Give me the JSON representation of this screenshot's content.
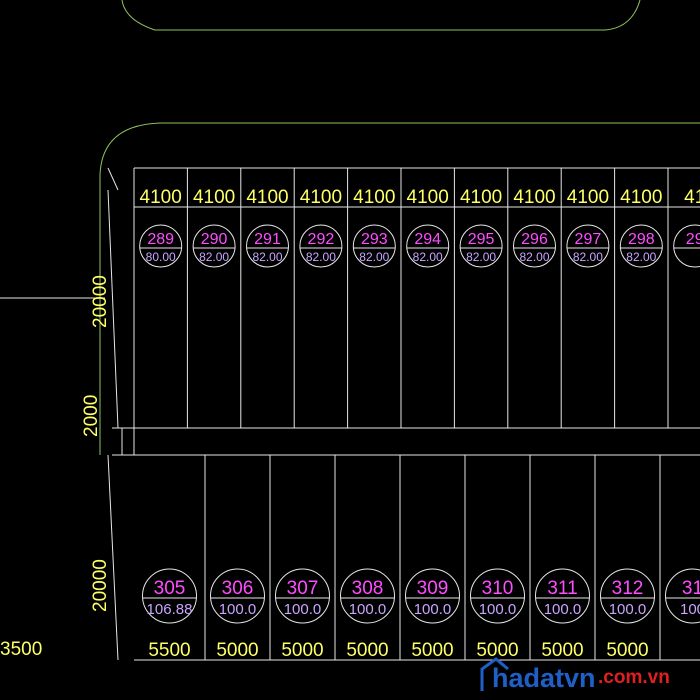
{
  "colors": {
    "background": "#000000",
    "linework": "#e6e6e6",
    "road_curve": "#8ec35a",
    "dimension_text": "#ffff66",
    "lot_number": "#ff4dff",
    "lot_area": "#c9a5ff",
    "watermark_blue": "#1e60c8",
    "watermark_red": "#e02020"
  },
  "dimensions": {
    "upper_block_depth": "20000",
    "road_width": "2000",
    "lower_block_depth": "20000",
    "left_offset": "3500"
  },
  "upper_row": [
    {
      "width": "4100",
      "lot": "289",
      "area": "80.00"
    },
    {
      "width": "4100",
      "lot": "290",
      "area": "82.00"
    },
    {
      "width": "4100",
      "lot": "291",
      "area": "82.00"
    },
    {
      "width": "4100",
      "lot": "292",
      "area": "82.00"
    },
    {
      "width": "4100",
      "lot": "293",
      "area": "82.00"
    },
    {
      "width": "4100",
      "lot": "294",
      "area": "82.00"
    },
    {
      "width": "4100",
      "lot": "295",
      "area": "82.00"
    },
    {
      "width": "4100",
      "lot": "296",
      "area": "82.00"
    },
    {
      "width": "4100",
      "lot": "297",
      "area": "82.00"
    },
    {
      "width": "4100",
      "lot": "298",
      "area": "82.00"
    },
    {
      "width": "41",
      "lot": "29",
      "area": ""
    }
  ],
  "lower_row": [
    {
      "width": "5500",
      "lot": "305",
      "area": "106.88"
    },
    {
      "width": "5000",
      "lot": "306",
      "area": "100.0"
    },
    {
      "width": "5000",
      "lot": "307",
      "area": "100.0"
    },
    {
      "width": "5000",
      "lot": "308",
      "area": "100.0"
    },
    {
      "width": "5000",
      "lot": "309",
      "area": "100.0"
    },
    {
      "width": "5000",
      "lot": "310",
      "area": "100.0"
    },
    {
      "width": "5000",
      "lot": "311",
      "area": "100.0"
    },
    {
      "width": "5000",
      "lot": "312",
      "area": "100.0"
    },
    {
      "width": "",
      "lot": "31",
      "area": "100"
    }
  ],
  "watermark": {
    "brand": "hadatvn",
    "domain": ".com.vn"
  }
}
